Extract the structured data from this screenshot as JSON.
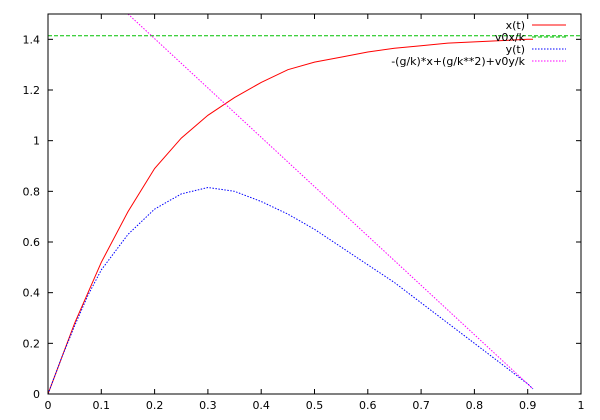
{
  "chart_data": {
    "type": "line",
    "xlim": [
      0,
      1
    ],
    "ylim": [
      0,
      1.5
    ],
    "x_ticks": [
      0,
      0.1,
      0.2,
      0.3,
      0.4,
      0.5,
      0.6,
      0.7,
      0.8,
      0.9,
      1
    ],
    "x_tick_labels": [
      "0",
      "0.1",
      "0.2",
      "0.3",
      "0.4",
      "0.5",
      "0.6",
      "0.7",
      "0.8",
      "0.9",
      "1"
    ],
    "y_ticks": [
      0,
      0.2,
      0.4,
      0.6,
      0.8,
      1,
      1.2,
      1.4
    ],
    "y_tick_labels": [
      "0",
      "0.2",
      "0.4",
      "0.6",
      "0.8",
      "1",
      "1.2",
      "1.4"
    ],
    "grid": false,
    "legend_position": "top-right",
    "series": [
      {
        "name": "x(t)",
        "color": "#ff0000",
        "dash": "solid",
        "x": [
          0,
          0.05,
          0.1,
          0.15,
          0.2,
          0.25,
          0.3,
          0.35,
          0.4,
          0.45,
          0.5,
          0.55,
          0.6,
          0.65,
          0.7,
          0.75,
          0.8,
          0.85,
          0.9,
          0.91
        ],
        "y": [
          0,
          0.28,
          0.52,
          0.72,
          0.89,
          1.01,
          1.1,
          1.17,
          1.23,
          1.28,
          1.31,
          1.33,
          1.35,
          1.365,
          1.375,
          1.385,
          1.39,
          1.395,
          1.4,
          1.4
        ]
      },
      {
        "name": "v0x/k",
        "color": "#00c000",
        "dash": "dashed",
        "x": [
          0,
          1
        ],
        "y": [
          1.414,
          1.414
        ]
      },
      {
        "name": "y(t)",
        "color": "#0000ff",
        "dash": "dotted",
        "x": [
          0,
          0.025,
          0.05,
          0.075,
          0.1,
          0.15,
          0.2,
          0.25,
          0.3,
          0.35,
          0.4,
          0.45,
          0.5,
          0.55,
          0.6,
          0.65,
          0.7,
          0.75,
          0.8,
          0.85,
          0.9,
          0.91
        ],
        "y": [
          0,
          0.14,
          0.27,
          0.39,
          0.49,
          0.63,
          0.73,
          0.79,
          0.815,
          0.8,
          0.76,
          0.71,
          0.65,
          0.58,
          0.51,
          0.44,
          0.36,
          0.28,
          0.2,
          0.12,
          0.04,
          0.02
        ]
      },
      {
        "name": "-(g/k)*x+(g/k**2)+v0y/k",
        "color": "#ff00ff",
        "dash": "dotted",
        "x": [
          0.15,
          0.91
        ],
        "y": [
          1.5,
          0.02
        ]
      }
    ]
  }
}
